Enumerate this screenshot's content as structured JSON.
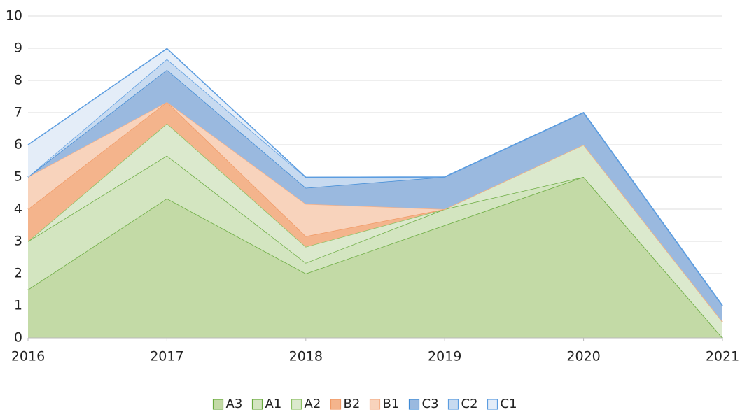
{
  "chart_data": {
    "type": "stacked_area",
    "x": [
      2016,
      2017,
      2018,
      2019,
      2020,
      2021
    ],
    "xlim": [
      2016,
      2021
    ],
    "xticks": [
      2016,
      2017,
      2018,
      2019,
      2020,
      2021
    ],
    "ylim": [
      0,
      10
    ],
    "yticks": [
      0,
      1,
      2,
      3,
      4,
      5,
      6,
      7,
      8,
      9,
      10
    ],
    "grid": true,
    "legend": "bottom",
    "series": [
      {
        "name": "A3",
        "color": "#c3daa6",
        "stroke": "#6aab3f",
        "values": [
          1.5,
          4.33,
          2,
          3.5,
          5,
          0
        ]
      },
      {
        "name": "A1",
        "color": "#d3e5c0",
        "stroke": "#6aab3f",
        "values": [
          1.5,
          1.33,
          0.33,
          0.5,
          0,
          0
        ]
      },
      {
        "name": "A2",
        "color": "#dbe9cd",
        "stroke": "#8cc063",
        "values": [
          0,
          1,
          0.5,
          0,
          1,
          0.5
        ]
      },
      {
        "name": "B2",
        "color": "#f4b48c",
        "stroke": "#f09a66",
        "values": [
          1,
          0.67,
          0.33,
          0,
          0,
          0
        ]
      },
      {
        "name": "B1",
        "color": "#f8d3bc",
        "stroke": "#f3b08a",
        "values": [
          1,
          0,
          1,
          0,
          0,
          0
        ]
      },
      {
        "name": "C3",
        "color": "#9ab9df",
        "stroke": "#3f8bd6",
        "values": [
          0,
          1,
          0.5,
          1,
          1,
          0.5
        ]
      },
      {
        "name": "C2",
        "color": "#c7daf0",
        "stroke": "#5c9de0",
        "values": [
          0,
          0.33,
          0.33,
          0,
          0,
          0
        ]
      },
      {
        "name": "C1",
        "color": "#e4edf8",
        "stroke": "#5c9de0",
        "values": [
          1,
          0.33,
          0,
          0,
          0,
          0
        ]
      }
    ]
  }
}
